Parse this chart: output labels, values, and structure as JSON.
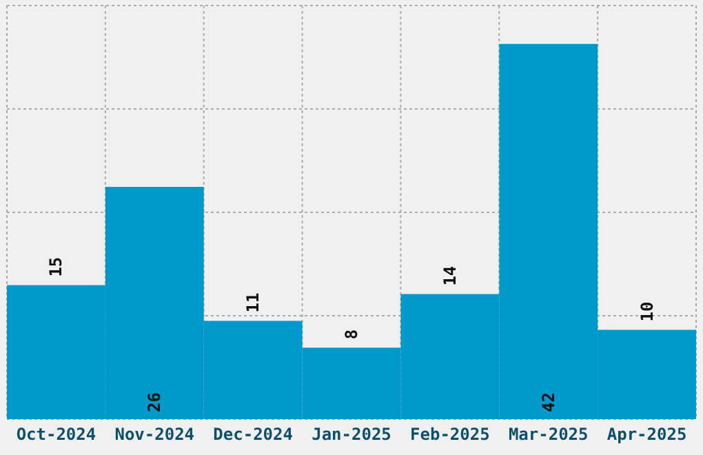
{
  "chart_data": {
    "type": "bar",
    "categories": [
      "Oct-2024",
      "Nov-2024",
      "Dec-2024",
      "Jan-2025",
      "Feb-2025",
      "Mar-2025",
      "Apr-2025"
    ],
    "values": [
      15,
      26,
      11,
      8,
      14,
      42,
      10
    ],
    "color": "#0099cc",
    "data_labels": true,
    "grid": true,
    "ylim": [
      0,
      46.3
    ],
    "yticks": [
      {
        "value": 0,
        "label": null
      },
      {
        "value": 11.58,
        "label": null
      },
      {
        "value": 23.15,
        "label": null
      },
      {
        "value": 34.73,
        "label": null
      },
      {
        "value": 46.3,
        "label": null
      }
    ]
  }
}
